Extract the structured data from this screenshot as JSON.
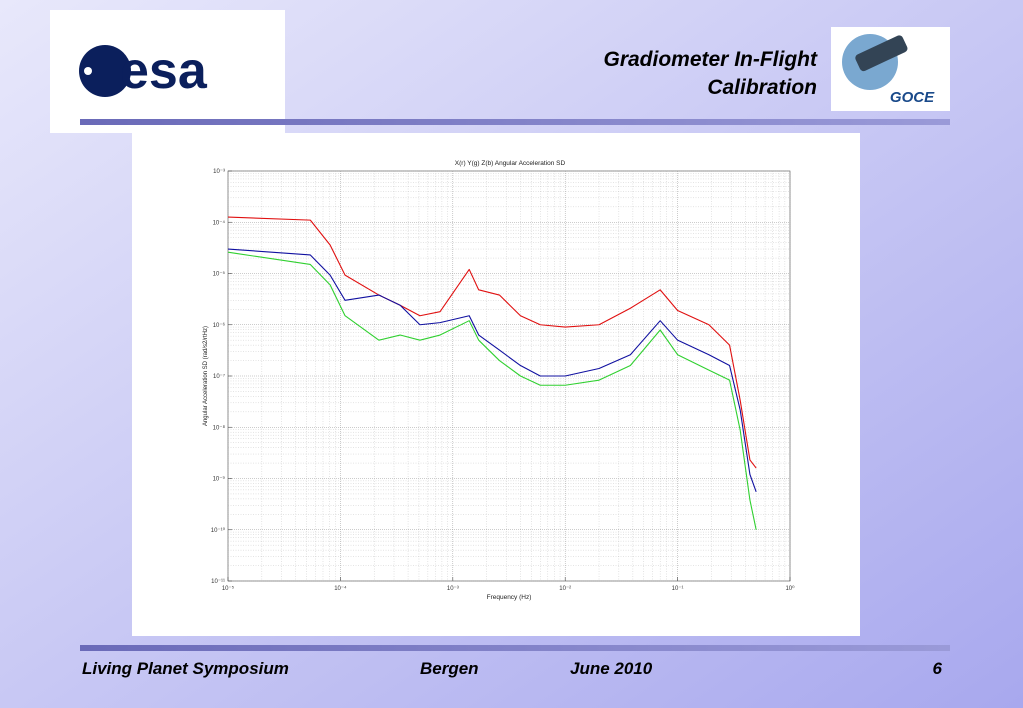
{
  "header": {
    "title_line1": "Gradiometer In-Flight",
    "title_line2": "Calibration",
    "logo_left": "esa",
    "logo_right": "GOCE"
  },
  "footer": {
    "event": "Living Planet Symposium",
    "place": "Bergen",
    "date": "June 2010",
    "page": "6"
  },
  "chart_data": {
    "type": "line",
    "title": "X(r) Y(g) Z(b) Angular Acceleration SD",
    "x_label": "Frequency (Hz)",
    "y_label": "Angular Acceleration SD (rad/s2/rtHz)",
    "log_x": true,
    "log_y": true,
    "grid": true,
    "x": [
      1e-05,
      5.4e-05,
      8.1e-05,
      0.00011,
      0.00022,
      0.00034,
      0.00051,
      0.00077,
      0.0014,
      0.0017,
      0.0026,
      0.004,
      0.006,
      0.01,
      0.02,
      0.038,
      0.07,
      0.1,
      0.19,
      0.29,
      0.36,
      0.44,
      0.5
    ],
    "series": [
      {
        "name": "X",
        "color": "#e01010",
        "values": [
          0.000126,
          0.00011,
          3.6e-05,
          9.3e-06,
          3.8e-06,
          2.4e-06,
          1.5e-06,
          1.8e-06,
          1.2e-05,
          4.8e-06,
          3.8e-06,
          1.5e-06,
          1e-06,
          9e-07,
          1e-06,
          2.1e-06,
          4.8e-06,
          1.9e-06,
          1e-06,
          4e-07,
          3.4e-08,
          2.3e-09,
          1.6e-09
        ]
      },
      {
        "name": "Y",
        "color": "#30d030",
        "values": [
          2.6e-05,
          1.5e-05,
          6e-06,
          1.5e-06,
          5e-07,
          6.3e-07,
          5e-07,
          6.3e-07,
          1.2e-06,
          5e-07,
          2e-07,
          1e-07,
          6.6e-08,
          6.6e-08,
          8.3e-08,
          1.6e-07,
          7.9e-07,
          2.6e-07,
          1.3e-07,
          8.3e-08,
          8.9e-09,
          3.8e-10,
          1e-10
        ]
      },
      {
        "name": "Z",
        "color": "#1010a0",
        "values": [
          3e-05,
          2.3e-05,
          9.3e-06,
          3e-06,
          3.8e-06,
          2.4e-06,
          1e-06,
          1.1e-06,
          1.5e-06,
          6.3e-07,
          3.2e-07,
          1.6e-07,
          1e-07,
          1e-07,
          1.4e-07,
          2.6e-07,
          1.2e-06,
          5e-07,
          2.6e-07,
          1.6e-07,
          2.2e-08,
          1.2e-09,
          5.5e-10
        ]
      }
    ],
    "xlim": [
      1e-05,
      1
    ],
    "xticks": [
      {
        "value": 1e-05,
        "label": "10⁻⁵"
      },
      {
        "value": 0.0001,
        "label": "10⁻⁴"
      },
      {
        "value": 0.001,
        "label": "10⁻³"
      },
      {
        "value": 0.01,
        "label": "10⁻²"
      },
      {
        "value": 0.1,
        "label": "10⁻¹"
      },
      {
        "value": 1,
        "label": "10⁰"
      }
    ],
    "ylim": [
      1e-11,
      0.001
    ],
    "yticks": [
      {
        "value": 1e-11,
        "label": "10⁻¹¹"
      },
      {
        "value": 1e-10,
        "label": "10⁻¹⁰"
      },
      {
        "value": 1e-09,
        "label": "10⁻⁹"
      },
      {
        "value": 1e-08,
        "label": "10⁻⁸"
      },
      {
        "value": 1e-07,
        "label": "10⁻⁷"
      },
      {
        "value": 1e-06,
        "label": "10⁻⁶"
      },
      {
        "value": 1e-05,
        "label": "10⁻⁵"
      },
      {
        "value": 0.0001,
        "label": "10⁻⁴"
      },
      {
        "value": 0.001,
        "label": "10⁻³"
      }
    ]
  }
}
